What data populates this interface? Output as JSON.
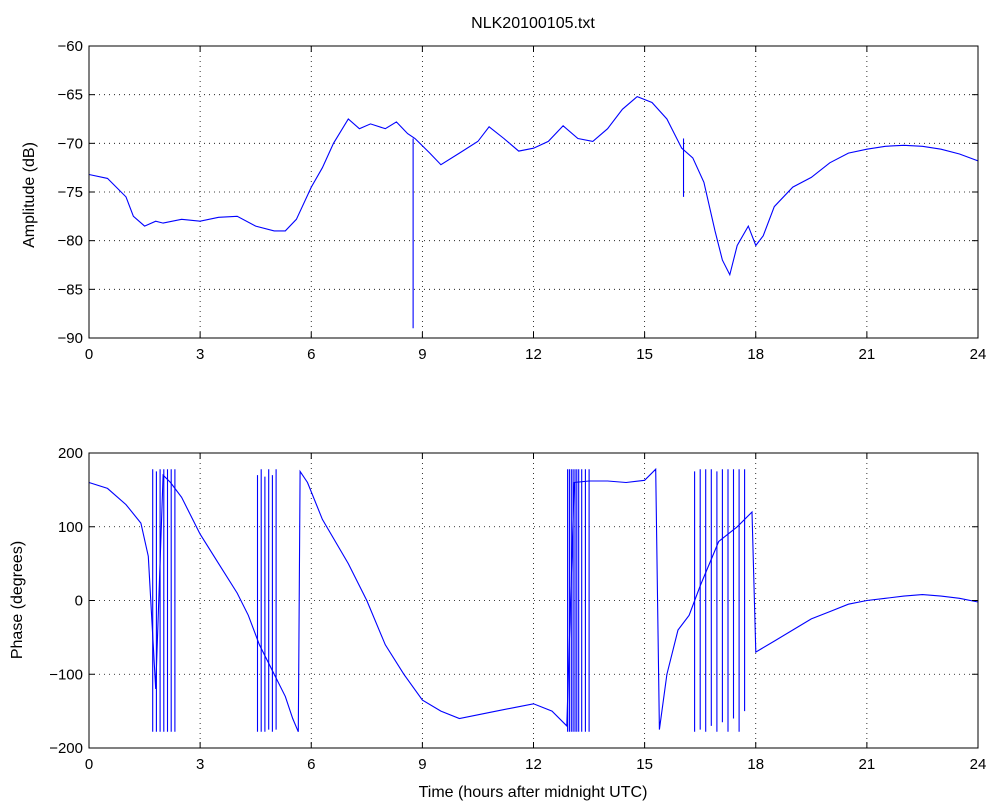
{
  "chart_data": [
    {
      "type": "line",
      "title": "NLK20100105.txt",
      "xlabel": "",
      "ylabel": "Amplitude (dB)",
      "xlim": [
        0,
        24
      ],
      "ylim": [
        -90,
        -60
      ],
      "xticks": [
        0,
        3,
        6,
        9,
        12,
        15,
        18,
        21,
        24
      ],
      "xtick_labels": [
        "0",
        "3",
        "6",
        "9",
        "12",
        "15",
        "18",
        "21",
        "24"
      ],
      "yticks": [
        -90,
        -85,
        -80,
        -75,
        -70,
        -65,
        -60
      ],
      "ytick_labels": [
        "−90",
        "−85",
        "−80",
        "−75",
        "−70",
        "−65",
        "−60"
      ],
      "grid": true,
      "line_color": "#0000ff",
      "series": [
        {
          "x": [
            0,
            0.5,
            1.0,
            1.2,
            1.5,
            1.8,
            2.0,
            2.5,
            3.0,
            3.5,
            4.0,
            4.5,
            5.0,
            5.3,
            5.6,
            6.0,
            6.3,
            6.6,
            7.0,
            7.3,
            7.6,
            8.0,
            8.3,
            8.6,
            8.8,
            9.2,
            9.5,
            10.0,
            10.5,
            10.8,
            11.2,
            11.6,
            12.0,
            12.4,
            12.8,
            13.2,
            13.6,
            14.0,
            14.4,
            14.8,
            15.2,
            15.6,
            16.0,
            16.3,
            16.6,
            16.9,
            17.1,
            17.3,
            17.5,
            17.8,
            18.0,
            18.2,
            18.5,
            19.0,
            19.5,
            20.0,
            20.5,
            21.0,
            21.5,
            22.0,
            22.5,
            23.0,
            23.5,
            24.0
          ],
          "y": [
            -73.2,
            -73.6,
            -75.5,
            -77.5,
            -78.5,
            -78.0,
            -78.2,
            -77.8,
            -78.0,
            -77.6,
            -77.5,
            -78.5,
            -79.0,
            -79.0,
            -77.8,
            -74.5,
            -72.5,
            -70.0,
            -67.5,
            -68.5,
            -68.0,
            -68.5,
            -67.8,
            -69.0,
            -69.5,
            -71.0,
            -72.2,
            -71.0,
            -69.8,
            -68.3,
            -69.5,
            -70.8,
            -70.5,
            -69.8,
            -68.2,
            -69.5,
            -69.8,
            -68.5,
            -66.5,
            -65.2,
            -65.8,
            -67.5,
            -70.5,
            -71.5,
            -74.0,
            -79.0,
            -82.0,
            -83.5,
            -80.5,
            -78.5,
            -80.5,
            -79.5,
            -76.5,
            -74.5,
            -73.5,
            -72.0,
            -71.0,
            -70.6,
            -70.3,
            -70.2,
            -70.3,
            -70.6,
            -71.1,
            -71.8
          ]
        }
      ],
      "annotations": [
        {
          "label": "spike",
          "x": 8.75,
          "y": -89
        },
        {
          "label": "spike",
          "x": 16.05,
          "y": -75.5
        }
      ]
    },
    {
      "type": "line",
      "title": "",
      "xlabel": "Time (hours after midnight UTC)",
      "ylabel": "Phase (degrees)",
      "xlim": [
        0,
        24
      ],
      "ylim": [
        -200,
        200
      ],
      "xticks": [
        0,
        3,
        6,
        9,
        12,
        15,
        18,
        21,
        24
      ],
      "xtick_labels": [
        "0",
        "3",
        "6",
        "9",
        "12",
        "15",
        "18",
        "21",
        "24"
      ],
      "yticks": [
        -200,
        -100,
        0,
        100,
        200
      ],
      "ytick_labels": [
        "−200",
        "−100",
        "0",
        "100",
        "200"
      ],
      "grid": true,
      "line_color": "#0000ff",
      "series": [
        {
          "x": [
            0,
            0.5,
            1.0,
            1.4,
            1.6,
            1.8,
            2.0,
            2.2,
            2.5,
            3.0,
            3.5,
            4.0,
            4.3,
            4.6,
            5.0,
            5.3,
            5.5,
            5.65,
            5.7,
            5.9,
            6.3,
            7.0,
            7.5,
            8.0,
            8.5,
            9.0,
            9.5,
            10.0,
            10.5,
            11.0,
            11.5,
            12.0,
            12.5,
            12.9,
            13.1,
            13.5,
            14.0,
            14.5,
            15.0,
            15.3,
            15.4,
            15.6,
            15.9,
            16.2,
            16.5,
            17.0,
            17.5,
            17.9,
            18.0,
            18.5,
            19.0,
            19.5,
            20.0,
            20.5,
            21.0,
            21.5,
            22.0,
            22.5,
            23.0,
            23.5,
            24.0
          ],
          "y": [
            160,
            152,
            130,
            105,
            60,
            -120,
            170,
            160,
            140,
            90,
            50,
            10,
            -20,
            -60,
            -100,
            -130,
            -160,
            -178,
            175,
            160,
            110,
            50,
            0,
            -60,
            -100,
            -135,
            -150,
            -160,
            -155,
            -150,
            -145,
            -140,
            -150,
            -170,
            160,
            162,
            162,
            160,
            163,
            178,
            -175,
            -100,
            -40,
            -20,
            20,
            80,
            100,
            120,
            -70,
            -55,
            -40,
            -25,
            -15,
            -5,
            0,
            3,
            6,
            8,
            6,
            3,
            -2
          ]
        },
        {
          "name": "",
          "x": [
            1.72,
            1.82,
            1.92,
            2.02,
            2.12,
            2.22,
            2.32,
            4.55,
            4.65,
            4.75,
            4.85,
            4.95,
            5.05,
            12.92,
            12.97,
            13.02,
            13.07,
            13.12,
            13.17,
            13.22,
            13.3,
            13.4,
            13.5,
            16.35,
            16.5,
            16.65,
            16.8,
            16.95,
            17.1,
            17.25,
            17.4,
            17.55,
            17.7
          ],
          "y": [
            -178,
            175,
            -178,
            178,
            -178,
            178,
            -178,
            170,
            -178,
            168,
            -175,
            170,
            -175,
            178,
            -178,
            178,
            -178,
            178,
            -178,
            178,
            -178,
            178,
            -178,
            175,
            -175,
            178,
            -170,
            175,
            -165,
            178,
            -160,
            178,
            -150
          ],
          "role": "phase-wrap"
        }
      ]
    }
  ]
}
